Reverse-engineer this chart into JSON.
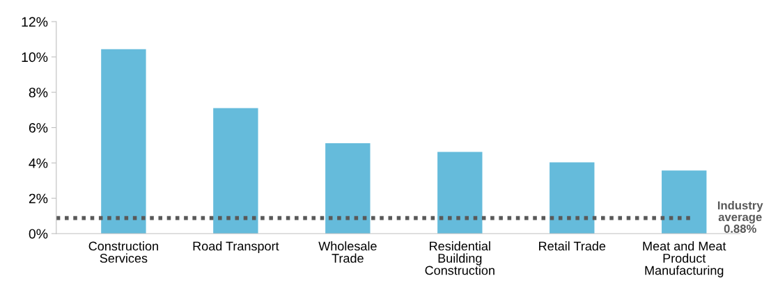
{
  "chart_data": {
    "type": "bar",
    "categories": [
      "Construction\nServices",
      "Road Transport",
      "Wholesale\nTrade",
      "Residential\nBuilding\nConstruction",
      "Retail Trade",
      "Meat and Meat\nProduct\nManufacturing"
    ],
    "values": [
      10.44,
      7.1,
      5.12,
      4.62,
      4.03,
      3.57
    ],
    "color": "#65bbdb",
    "ylim": [
      0,
      12
    ],
    "yticks": [
      {
        "value": 0,
        "label": "0%"
      },
      {
        "value": 2,
        "label": "2%"
      },
      {
        "value": 4,
        "label": "4%"
      },
      {
        "value": 6,
        "label": "6%"
      },
      {
        "value": 8,
        "label": "8%"
      },
      {
        "value": 10,
        "label": "10%"
      },
      {
        "value": 12,
        "label": "12%"
      }
    ],
    "grid": false,
    "ref_lines": [
      {
        "axis": "y",
        "value": 0.88,
        "label": "Industry\naverage\n0.88%",
        "color": "#595959",
        "line_style": "dotted"
      }
    ]
  }
}
